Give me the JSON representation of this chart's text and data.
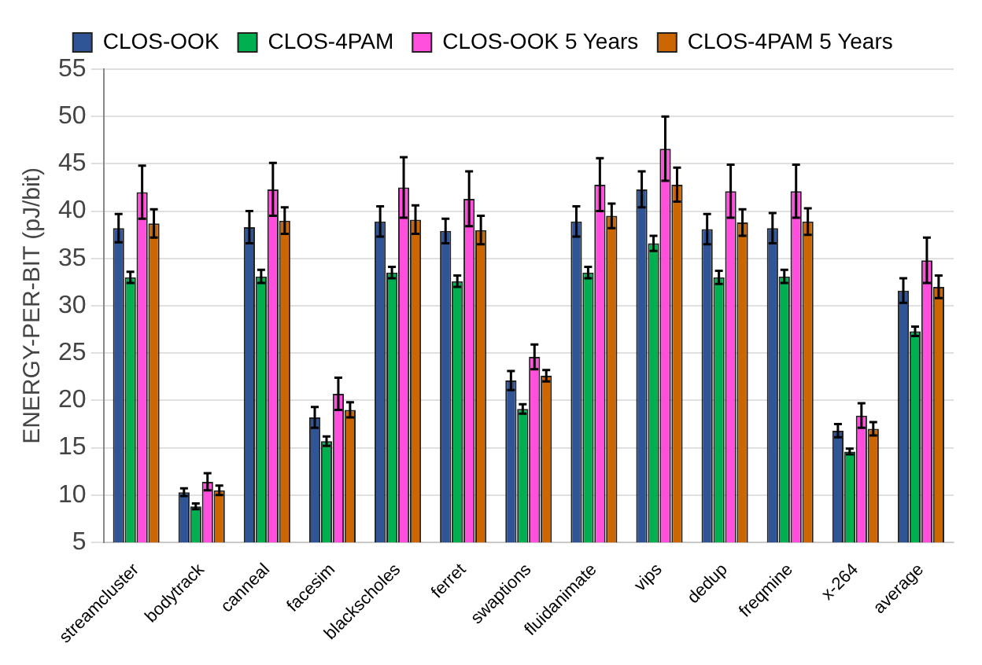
{
  "chart_data": {
    "type": "bar",
    "ylabel": "ENERGY-PER-BIT (pJ/bit)",
    "categories": [
      "streamcluster",
      "bodytrack",
      "canneal",
      "facesim",
      "blackscholes",
      "ferret",
      "swaptions",
      "fluidanimate",
      "vips",
      "dedup",
      "freqmine",
      "x-264",
      "average"
    ],
    "series": [
      {
        "name": "CLOS-OOK",
        "color": "#2f5597",
        "values": [
          38.2,
          10.3,
          38.3,
          18.2,
          38.9,
          37.9,
          22.1,
          38.9,
          42.3,
          38.1,
          38.2,
          16.8,
          31.6
        ],
        "errors": [
          1.5,
          0.4,
          1.7,
          1.1,
          1.6,
          1.3,
          1.0,
          1.6,
          1.9,
          1.6,
          1.6,
          0.7,
          1.3
        ]
      },
      {
        "name": "CLOS-4PAM",
        "color": "#00b050",
        "values": [
          33,
          8.8,
          33.1,
          15.7,
          33.5,
          32.6,
          19.1,
          33.5,
          36.6,
          33,
          33.1,
          14.6,
          27.3
        ],
        "errors": [
          0.6,
          0.3,
          0.7,
          0.5,
          0.6,
          0.6,
          0.5,
          0.6,
          0.8,
          0.7,
          0.7,
          0.3,
          0.5
        ]
      },
      {
        "name": "CLOS-OOK 5 Years",
        "color": "#ff4fdc",
        "values": [
          42,
          11.4,
          42.3,
          20.7,
          42.5,
          41.3,
          24.6,
          42.8,
          46.6,
          42.1,
          42.1,
          18.4,
          34.8
        ],
        "errors": [
          2.8,
          0.9,
          2.8,
          1.7,
          3.2,
          2.9,
          1.3,
          2.8,
          3.4,
          2.8,
          2.8,
          1.3,
          2.4
        ]
      },
      {
        "name": "CLOS-4PAM 5 Years",
        "color": "#cc6600",
        "values": [
          38.7,
          10.5,
          39,
          19,
          39.1,
          38,
          22.6,
          39.5,
          42.8,
          38.8,
          38.9,
          17,
          32
        ],
        "errors": [
          1.5,
          0.5,
          1.4,
          0.8,
          1.5,
          1.5,
          0.6,
          1.3,
          1.8,
          1.4,
          1.4,
          0.7,
          1.2
        ]
      }
    ],
    "ylim": [
      5,
      55
    ],
    "yticks": [
      5,
      10,
      15,
      20,
      25,
      30,
      35,
      40,
      45,
      50,
      55
    ],
    "grid": "y",
    "legend": "top"
  }
}
